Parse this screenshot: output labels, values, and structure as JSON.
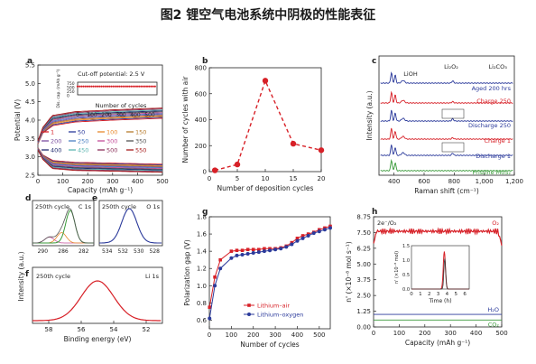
{
  "figure_title": "图2 锂空气电池系统中阴极的性能表征",
  "colors": {
    "red": "#d72027",
    "blue": "#2b3a9b",
    "green": "#3a9a3a",
    "dark": "#222222"
  },
  "chart_data": [
    {
      "panel": "a",
      "type": "line",
      "xlabel": "Capacity (mAh g⁻¹)",
      "ylabel": "Potential (V)",
      "xlim": [
        0,
        500
      ],
      "ylim": [
        2.5,
        5.5
      ],
      "xticks": [
        "0",
        "100",
        "200",
        "300",
        "400",
        "500"
      ],
      "yticks": [
        "2.5",
        "3.0",
        "3.5",
        "4.0",
        "4.5",
        "5.0",
        "5.5"
      ],
      "annotation": "Cut-off potential: 2.5 V",
      "legend": [
        {
          "label": "1",
          "color": "#d72027"
        },
        {
          "label": "50",
          "color": "#2b3a9b"
        },
        {
          "label": "100",
          "color": "#e8892c"
        },
        {
          "label": "150",
          "color": "#b77b2d"
        },
        {
          "label": "200",
          "color": "#7b4fa0"
        },
        {
          "label": "250",
          "color": "#4a7fc2"
        },
        {
          "label": "300",
          "color": "#c44f9a"
        },
        {
          "label": "350",
          "color": "#555555"
        },
        {
          "label": "400",
          "color": "#1f2a6e"
        },
        {
          "label": "450",
          "color": "#5cb5b0"
        },
        {
          "label": "500",
          "color": "#8b2f5a"
        },
        {
          "label": "550",
          "color": "#a61b1b"
        }
      ],
      "curves": {
        "charge": [
          [
            0,
            3.35
          ],
          [
            20,
            3.65
          ],
          [
            60,
            3.85
          ],
          [
            150,
            3.95
          ],
          [
            300,
            4.0
          ],
          [
            500,
            4.05
          ]
        ],
        "discharge": [
          [
            0,
            3.2
          ],
          [
            20,
            3.0
          ],
          [
            60,
            2.85
          ],
          [
            150,
            2.8
          ],
          [
            300,
            2.78
          ],
          [
            500,
            2.75
          ]
        ],
        "charge_spread": 0.28,
        "discharge_spread": 0.22
      },
      "inset": {
        "xlabel": "Number of cycles",
        "ylabel": "Dis. cap. (mAh g⁻¹)",
        "xticks": [
          "0",
          "100",
          "200",
          "300",
          "400",
          "500"
        ],
        "yticks": [
          "750",
          "500",
          "250",
          "0"
        ],
        "xlim": [
          0,
          550
        ],
        "ylim": [
          0,
          750
        ],
        "value": 500,
        "points": 40
      }
    },
    {
      "panel": "b",
      "type": "line",
      "xlabel": "Number of deposition cycles",
      "ylabel": "Number of cycles with air",
      "xlim": [
        0,
        20
      ],
      "ylim": [
        0,
        800
      ],
      "xticks": [
        "0",
        "5",
        "10",
        "15",
        "20"
      ],
      "yticks": [
        "0",
        "200",
        "400",
        "600",
        "800"
      ],
      "x": [
        1,
        5,
        10,
        15,
        20
      ],
      "y": [
        10,
        55,
        700,
        215,
        165
      ]
    },
    {
      "panel": "c",
      "type": "line",
      "xlabel": "Raman shift (cm⁻¹)",
      "ylabel": "Intensity (a.u.)",
      "xlim": [
        300,
        1200
      ],
      "xticks": [
        "400",
        "600",
        "800",
        "1,000",
        "1,200"
      ],
      "peak_labels": [
        "LiOH",
        "Li₂O₂",
        "Li₂CO₃"
      ],
      "series": [
        {
          "name": "Aged 200 hrs",
          "color": "#2b3a9b"
        },
        {
          "name": "Charge 250",
          "color": "#d72027"
        },
        {
          "name": "Discharge 250",
          "color": "#2b3a9b"
        },
        {
          "name": "Charge 1",
          "color": "#d72027"
        },
        {
          "name": "Discharge 1",
          "color": "#2b3a9b"
        },
        {
          "name": "Pristine MoS₂",
          "color": "#3a9a3a"
        }
      ]
    },
    {
      "panel": "d",
      "type": "line",
      "header": "250th cycle",
      "element": "C 1s",
      "xticks": [
        "290",
        "286",
        "282"
      ],
      "xlim": [
        292,
        280
      ]
    },
    {
      "panel": "e",
      "type": "line",
      "header": "250th cycle",
      "element": "O 1s",
      "xticks": [
        "534",
        "532",
        "530",
        "528"
      ],
      "xlim": [
        535,
        527
      ]
    },
    {
      "panel": "f",
      "type": "line",
      "header": "250th cycle",
      "element": "Li 1s",
      "xlabel": "Binding energy (eV)",
      "shared_ylabel": "Intensity (a.u.)",
      "xticks": [
        "58",
        "56",
        "54",
        "52"
      ],
      "xlim": [
        59,
        51
      ],
      "peak_center": 55.0
    },
    {
      "panel": "g",
      "type": "line",
      "xlabel": "Number of cycles",
      "ylabel": "Polarization gap (V)",
      "xlim": [
        0,
        550
      ],
      "ylim": [
        0.5,
        1.8
      ],
      "xticks": [
        "0",
        "100",
        "200",
        "300",
        "400",
        "500"
      ],
      "yticks": [
        "0.6",
        "0.8",
        "1.0",
        "1.2",
        "1.4",
        "1.6",
        "1.8"
      ],
      "series": [
        {
          "name": "Lithium–air",
          "color": "#d72027",
          "marker": "square",
          "x": [
            1,
            25,
            50,
            100,
            125,
            150,
            175,
            200,
            225,
            250,
            275,
            300,
            325,
            350,
            375,
            400,
            425,
            450,
            475,
            500,
            525,
            550
          ],
          "y": [
            0.75,
            1.1,
            1.3,
            1.4,
            1.41,
            1.41,
            1.42,
            1.42,
            1.42,
            1.43,
            1.43,
            1.43,
            1.44,
            1.46,
            1.5,
            1.55,
            1.58,
            1.6,
            1.62,
            1.65,
            1.67,
            1.69
          ]
        },
        {
          "name": "Lithium–oxygen",
          "color": "#2b3a9b",
          "marker": "circle",
          "x": [
            1,
            25,
            50,
            100,
            125,
            150,
            175,
            200,
            225,
            250,
            275,
            300,
            325,
            350,
            375,
            400,
            425,
            450,
            475,
            500,
            525,
            550
          ],
          "y": [
            0.62,
            1.0,
            1.2,
            1.32,
            1.35,
            1.36,
            1.37,
            1.38,
            1.39,
            1.4,
            1.41,
            1.42,
            1.43,
            1.45,
            1.48,
            1.52,
            1.55,
            1.58,
            1.61,
            1.63,
            1.65,
            1.67
          ]
        }
      ]
    },
    {
      "panel": "h",
      "type": "line",
      "xlabel": "Capacity (mAh g⁻¹)",
      "ylabel": "n' (×10⁻⁸ mol s⁻¹)",
      "xlim": [
        0,
        500
      ],
      "ylim": [
        0,
        8.75
      ],
      "xticks": [
        "0",
        "100",
        "200",
        "300",
        "400",
        "500"
      ],
      "yticks": [
        "0.00",
        "1.25",
        "2.50",
        "3.75",
        "5.00",
        "6.25",
        "7.50",
        "8.75"
      ],
      "annotation": "2e⁻/O₂",
      "series": [
        {
          "name": "O₂",
          "color": "#d72027",
          "level": 7.6
        },
        {
          "name": "H₂O",
          "color": "#2b3a9b",
          "level": 1.0
        },
        {
          "name": "CO₂",
          "color": "#3a9a3a",
          "level": 0.55
        }
      ],
      "inset": {
        "xlabel": "Time (h)",
        "ylabel": "n' (×10⁻⁸ mol)",
        "xticks": [
          "0",
          "1",
          "2",
          "3",
          "4",
          "5",
          "6"
        ],
        "yticks": [
          "0.0",
          "0.5",
          "1.0",
          "1.5"
        ],
        "xlim": [
          0,
          6.5
        ],
        "ylim": [
          0,
          1.5
        ],
        "peak_time": 3.7,
        "peak_red": 1.3,
        "peak_dark": 1.05
      }
    }
  ]
}
